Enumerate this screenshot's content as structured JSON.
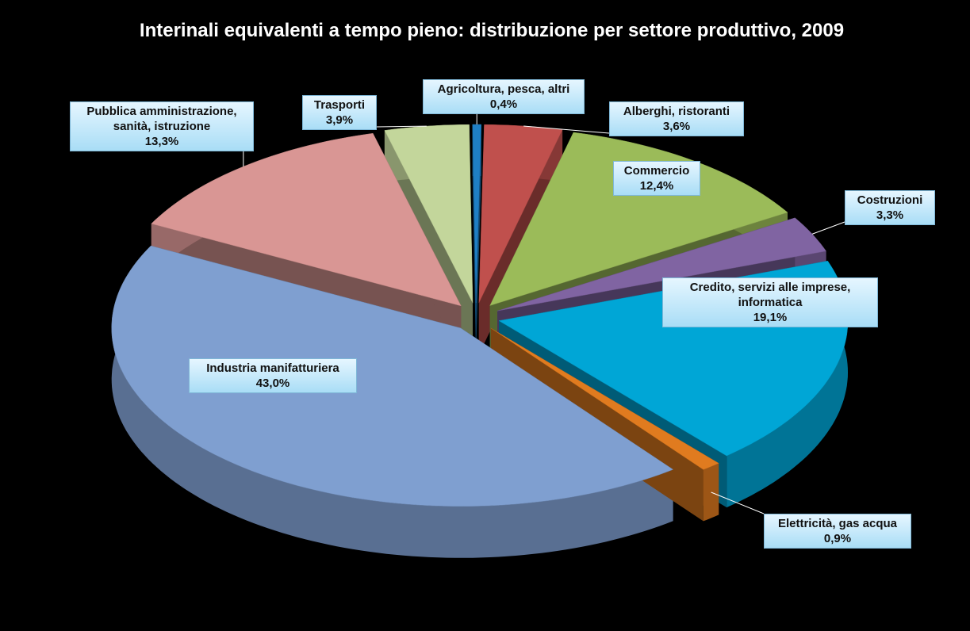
{
  "chart_data": {
    "type": "pie",
    "title": "Interinali equivalenti a tempo pieno: distribuzione per settore produttivo, 2009",
    "categories": [
      "Agricoltura, pesca, altri",
      "Alberghi, ristoranti",
      "Commercio",
      "Costruzioni",
      "Credito, servizi alle imprese, informatica",
      "Elettricità, gas acqua",
      "Industria manifatturiera",
      "Pubblica amministrazione, sanità, istruzione",
      "Trasporti"
    ],
    "values": [
      0.4,
      3.6,
      12.4,
      3.3,
      19.1,
      0.9,
      43.0,
      13.3,
      3.9
    ],
    "value_labels": [
      "0,4%",
      "3,6%",
      "12,4%",
      "3,3%",
      "19,1%",
      "0,9%",
      "43,0%",
      "13,3%",
      "3,9%"
    ],
    "colors": [
      "#1f7fc4",
      "#c0504d",
      "#9bbb59",
      "#8064a2",
      "#00a6d6",
      "#e07b1f",
      "#7f9fd0",
      "#d99694",
      "#c3d69b"
    ]
  }
}
